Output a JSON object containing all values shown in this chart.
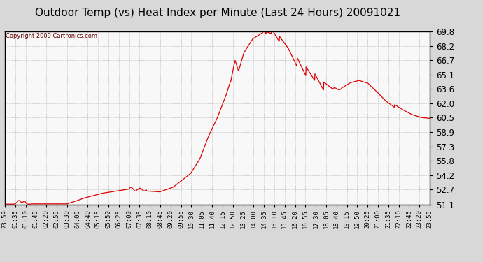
{
  "title": "Outdoor Temp (vs) Heat Index per Minute (Last 24 Hours) 20091021",
  "copyright_text": "Copyright 2009 Cartronics.com",
  "line_color": "#dd0000",
  "background_color": "#d8d8d8",
  "plot_bg_color": "#f8f8f8",
  "grid_color": "#bbbbbb",
  "y_ticks": [
    51.1,
    52.7,
    54.2,
    55.8,
    57.3,
    58.9,
    60.5,
    62.0,
    63.6,
    65.1,
    66.7,
    68.2,
    69.8
  ],
  "x_labels": [
    "23:59",
    "01:35",
    "01:10",
    "01:45",
    "02:20",
    "02:55",
    "03:30",
    "04:05",
    "04:40",
    "05:15",
    "05:50",
    "06:25",
    "07:00",
    "07:35",
    "08:10",
    "08:45",
    "09:20",
    "09:55",
    "10:30",
    "11:05",
    "11:40",
    "12:15",
    "12:50",
    "13:25",
    "14:00",
    "14:35",
    "15:10",
    "15:45",
    "16:20",
    "16:55",
    "17:30",
    "18:05",
    "18:40",
    "19:15",
    "19:50",
    "20:25",
    "21:00",
    "21:35",
    "22:10",
    "22:45",
    "23:20",
    "23:55"
  ],
  "y_min": 51.1,
  "y_max": 69.8,
  "title_fontsize": 11,
  "copyright_fontsize": 6,
  "tick_fontsize": 6.5,
  "ytick_fontsize": 8.5
}
